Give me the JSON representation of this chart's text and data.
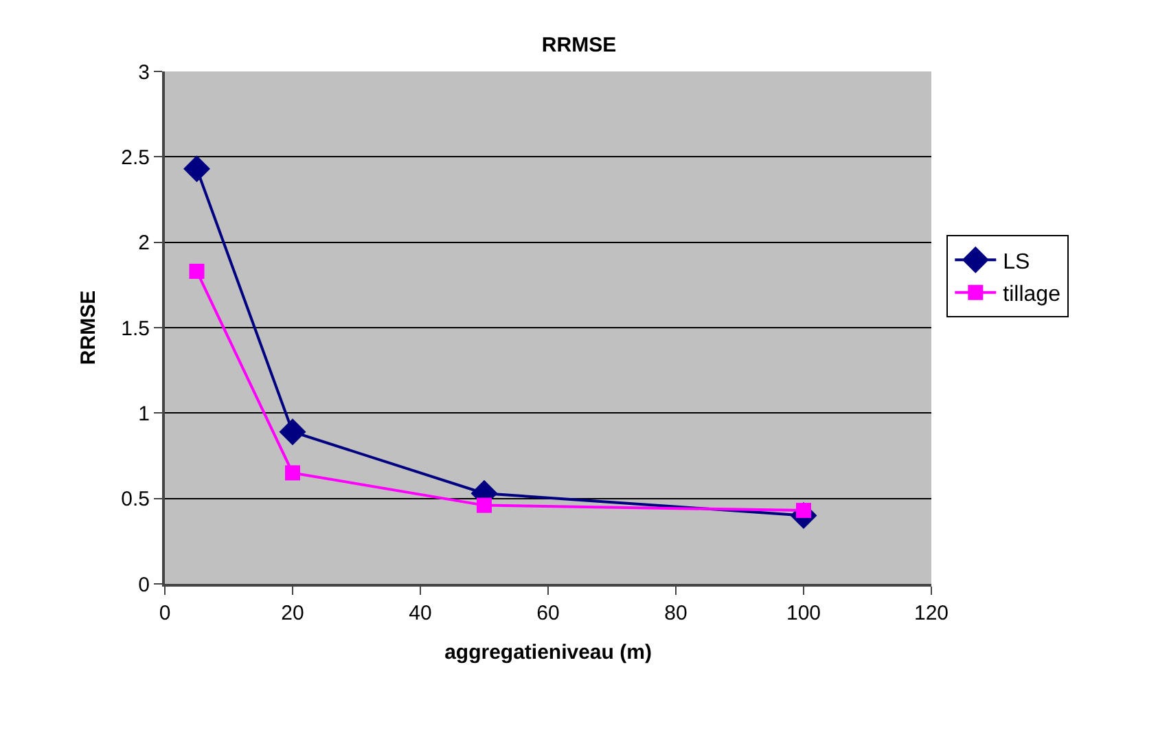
{
  "chart_data": {
    "type": "line",
    "title": "RRMSE",
    "xlabel": "aggregatieniveau (m)",
    "ylabel": "RRMSE",
    "x": [
      5,
      20,
      50,
      100
    ],
    "series": [
      {
        "name": "LS",
        "color": "#000080",
        "values": [
          2.43,
          0.89,
          0.53,
          0.4
        ],
        "marker": "diamond"
      },
      {
        "name": "tillage",
        "color": "#ff00ff",
        "values": [
          1.83,
          0.65,
          0.46,
          0.43
        ],
        "marker": "square"
      }
    ],
    "xlim": [
      0,
      120
    ],
    "xticks": [
      0,
      20,
      40,
      60,
      80,
      100,
      120
    ],
    "ylim": [
      0,
      3
    ],
    "yticks": [
      0,
      0.5,
      1,
      1.5,
      2,
      2.5,
      3
    ],
    "grid": "y",
    "legend": "right",
    "line_style": "solid"
  }
}
